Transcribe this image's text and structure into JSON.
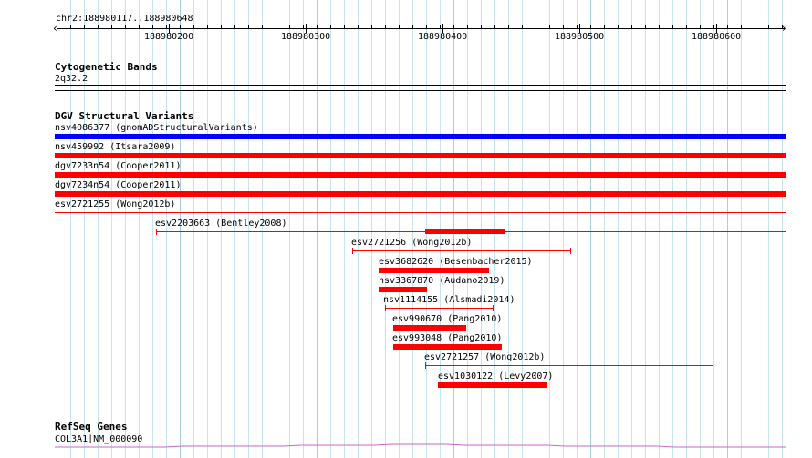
{
  "ruler": {
    "location": "chr2:188980117..188980648",
    "ticks": [
      "188980200",
      "188980300",
      "188980400",
      "188980500",
      "188980600"
    ]
  },
  "cytoband": {
    "title": "Cytogenetic Bands",
    "band": "2q32.2"
  },
  "dgv": {
    "title": "DGV Structural Variants",
    "features": [
      {
        "label": "nsv4086377 (gnomADStructuralVariants)",
        "color": "#0000ff",
        "style": "thick"
      },
      {
        "label": "nsv459992 (Itsara2009)",
        "color": "#ff0000",
        "style": "thick"
      },
      {
        "label": "dgv7233n54 (Cooper2011)",
        "color": "#ff0000",
        "style": "thick"
      },
      {
        "label": "dgv7234n54 (Cooper2011)",
        "color": "#ff0000",
        "style": "thick"
      },
      {
        "label": "esv2721255 (Wong2012b)",
        "color": "#ff0000",
        "style": "thin"
      },
      {
        "label": "esv2203663 (Bentley2008)",
        "color": "#ff0000",
        "style": "thin"
      },
      {
        "label": "esv2721256 (Wong2012b)",
        "color": "#ff0000",
        "style": "thin"
      },
      {
        "label": "esv3682620 (Besenbacher2015)",
        "color": "#ff0000",
        "style": "thick"
      },
      {
        "label": "nsv3367870 (Audano2019)",
        "color": "#ff0000",
        "style": "thick"
      },
      {
        "label": "nsv1114155 (Alsmadi2014)",
        "color": "#ff0000",
        "style": "thin"
      },
      {
        "label": "esv990670 (Pang2010)",
        "color": "#ff0000",
        "style": "thick"
      },
      {
        "label": "esv993048 (Pang2010)",
        "color": "#ff0000",
        "style": "thick"
      },
      {
        "label": "esv2721257 (Wong2012b)",
        "color": "#ff0000",
        "style": "thin"
      },
      {
        "label": "esv1030122 (Levy2007)",
        "color": "#ff0000",
        "style": "thick"
      }
    ]
  },
  "refseq": {
    "title": "RefSeq Genes",
    "gene": "COL3A1|NM_000090",
    "color": "#cc66cc"
  }
}
